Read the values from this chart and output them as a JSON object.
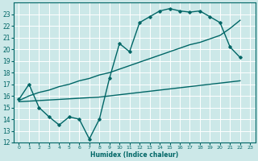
{
  "bg_color": "#cce8e8",
  "line_color": "#006666",
  "grid_color": "#ffffff",
  "xlabel": "Humidex (Indice chaleur)",
  "xlim": [
    -0.5,
    23.5
  ],
  "ylim": [
    12,
    24
  ],
  "xticks": [
    0,
    1,
    2,
    3,
    4,
    5,
    6,
    7,
    8,
    9,
    10,
    11,
    12,
    13,
    14,
    15,
    16,
    17,
    18,
    19,
    20,
    21,
    22,
    23
  ],
  "yticks": [
    12,
    13,
    14,
    15,
    16,
    17,
    18,
    19,
    20,
    21,
    22,
    23
  ],
  "line1_x": [
    0,
    1,
    2,
    3,
    4,
    5,
    6,
    7,
    8,
    9,
    10,
    11,
    12,
    13,
    14,
    15,
    16,
    17,
    18,
    19,
    20,
    21,
    22
  ],
  "line1_y": [
    15.7,
    17.0,
    15.0,
    14.2,
    13.5,
    14.2,
    14.0,
    12.3,
    14.0,
    17.5,
    20.5,
    19.8,
    22.3,
    22.8,
    23.3,
    23.5,
    23.3,
    23.2,
    23.3,
    22.8,
    22.3,
    20.2,
    19.3
  ],
  "line2_x": [
    0,
    1,
    2,
    3,
    4,
    5,
    6,
    7,
    8,
    9,
    10,
    11,
    12,
    13,
    14,
    15,
    16,
    17,
    18,
    19,
    20,
    21,
    22
  ],
  "line2_y": [
    15.6,
    16.0,
    16.3,
    16.5,
    16.8,
    17.0,
    17.3,
    17.5,
    17.8,
    18.0,
    18.3,
    18.6,
    18.9,
    19.2,
    19.5,
    19.8,
    20.1,
    20.4,
    20.6,
    20.9,
    21.2,
    21.8,
    22.5
  ],
  "line3_x": [
    0,
    1,
    2,
    3,
    4,
    5,
    6,
    7,
    8,
    9,
    10,
    11,
    12,
    13,
    14,
    15,
    16,
    17,
    18,
    19,
    20,
    21,
    22
  ],
  "line3_y": [
    15.5,
    15.55,
    15.6,
    15.65,
    15.7,
    15.75,
    15.8,
    15.85,
    15.9,
    16.0,
    16.1,
    16.2,
    16.3,
    16.4,
    16.5,
    16.6,
    16.7,
    16.8,
    16.9,
    17.0,
    17.1,
    17.2,
    17.3
  ]
}
